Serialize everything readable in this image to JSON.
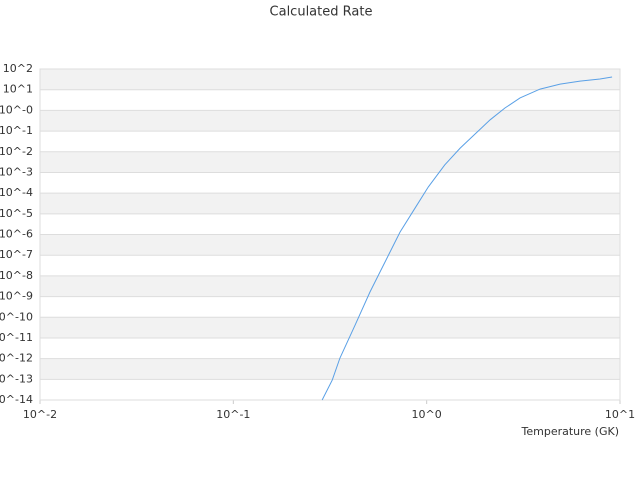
{
  "chart_data": {
    "type": "line",
    "title": "Calculated Rate",
    "x_label": "Temperature (GK)",
    "log_x": true,
    "log_y": true,
    "banded_grid": true,
    "xlim": [
      0.01,
      10
    ],
    "xticks": [
      {
        "value": 0.01,
        "label": "10^-2"
      },
      {
        "value": 0.1,
        "label": "10^-1"
      },
      {
        "value": 1,
        "label": "10^0"
      },
      {
        "value": 10,
        "label": "10^1"
      }
    ],
    "ylim": [
      1e-14,
      100
    ],
    "yticks": [
      {
        "value": 100,
        "label": "10^2"
      },
      {
        "value": 10,
        "label": "10^1"
      },
      {
        "value": 1,
        "label": "10^-0"
      },
      {
        "value": 0.1,
        "label": "10^-1"
      },
      {
        "value": 0.01,
        "label": "10^-2"
      },
      {
        "value": 0.001,
        "label": "10^-3"
      },
      {
        "value": 0.0001,
        "label": "10^-4"
      },
      {
        "value": 1e-05,
        "label": "10^-5"
      },
      {
        "value": 1e-06,
        "label": "10^-6"
      },
      {
        "value": 1e-07,
        "label": "10^-7"
      },
      {
        "value": 1e-08,
        "label": "10^-8"
      },
      {
        "value": 1e-09,
        "label": "10^-9"
      },
      {
        "value": 1e-10,
        "label": "10^-10"
      },
      {
        "value": 1e-11,
        "label": "10^-11"
      },
      {
        "value": 1e-12,
        "label": "10^-12"
      },
      {
        "value": 1e-13,
        "label": "10^-13"
      },
      {
        "value": 1e-14,
        "label": "10^-14"
      }
    ],
    "x": [
      0.288,
      0.325,
      0.356,
      0.427,
      0.509,
      0.609,
      0.728,
      0.871,
      1.02,
      1.24,
      1.49,
      1.78,
      2.13,
      2.54,
      3.04,
      3.86,
      4.9,
      6.21,
      7.88,
      9.1
    ],
    "series": [
      {
        "color": "#5aa0e6",
        "values": [
          1e-14,
          9.3e-14,
          1.07e-12,
          4.3e-11,
          1.66e-09,
          4.7e-08,
          1.3e-06,
          1.9e-05,
          0.0002,
          0.0023,
          0.015,
          0.072,
          0.35,
          1.3,
          4.0,
          10.7,
          18.6,
          26,
          33,
          41
        ]
      }
    ]
  }
}
